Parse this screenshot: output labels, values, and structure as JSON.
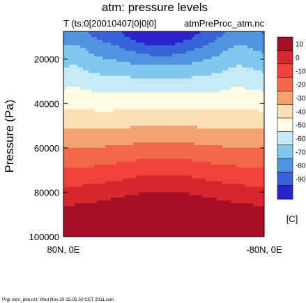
{
  "chart_data": {
    "type": "heatmap",
    "title": "atm: pressure levels",
    "subtitle_left": "T (ts:0[20010407|0|0|0]",
    "subtitle_right": "atmPreProc_atm.nc",
    "ylabel": "Pressure (Pa)",
    "xlabel": "",
    "x_axis": {
      "start_label": "80N, 0E",
      "end_label": "-80N, 0E",
      "latitude_range": [
        80,
        -80
      ]
    },
    "y_axis": {
      "ticks": [
        "20000",
        "40000",
        "60000",
        "80000",
        "100000"
      ],
      "tick_values": [
        20000,
        40000,
        60000,
        80000,
        100000
      ],
      "range": [
        7500,
        100000
      ],
      "inverted": true
    },
    "colorbar": {
      "unit": "[C]",
      "levels": [
        10,
        0,
        -10,
        -20,
        -30,
        -40,
        -50,
        -60,
        -70,
        -80,
        -90
      ],
      "level_labels": [
        "10",
        "0",
        "-10",
        "-20",
        "-30",
        "-40",
        "-50",
        "-60",
        "-70",
        "-80",
        "-90"
      ],
      "colors": [
        "#a50f26",
        "#d62630",
        "#f0433d",
        "#f06a4a",
        "#f5a070",
        "#fae0b6",
        "#fefae4",
        "#c7e9f3",
        "#80c8ec",
        "#4e94df",
        "#3a62d8",
        "#2a22cc"
      ]
    },
    "footer": "Prgr icon_plot.ncl: Wed Nov 30 15:05:50 CET 2011,ram"
  }
}
